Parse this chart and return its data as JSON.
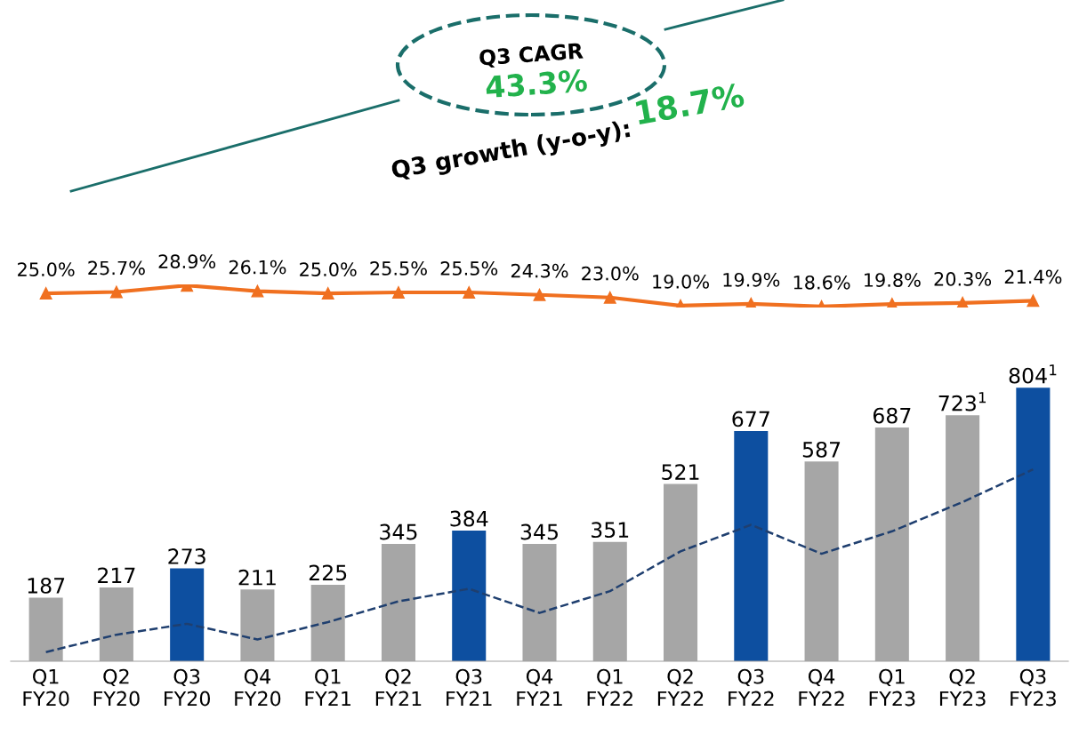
{
  "chart_data": [
    {
      "type": "line",
      "categories": [
        null,
        null,
        null,
        null,
        null,
        null,
        null,
        null,
        null,
        null,
        null,
        null,
        null,
        null,
        null
      ],
      "series": [
        {
          "color": "#f07020",
          "values": [
            25.0,
            25.7,
            28.9,
            26.1,
            25.0,
            25.5,
            25.5,
            24.3,
            23.0,
            19.0,
            19.9,
            18.6,
            19.8,
            20.3,
            21.4
          ],
          "value_labels": [
            "25.0%",
            "25.7%",
            "28.9%",
            "26.1%",
            "25.0%",
            "25.5%",
            "25.5%",
            "24.3%",
            "23.0%",
            "19.0%",
            "19.9%",
            "18.6%",
            "19.8%",
            "20.3%",
            "21.4%"
          ]
        }
      ],
      "marker": "triangle",
      "line_style": "solid",
      "tick_labels": false,
      "grid": false,
      "annotations": [
        "Q3 CAGR",
        "43.3%",
        "Q3 growth (y-o-y):",
        "18.7%"
      ]
    },
    {
      "type": "bar",
      "categories": [
        "Q1\nFY20",
        "Q2\nFY20",
        "Q3\nFY20",
        "Q4\nFY20",
        "Q1\nFY21",
        "Q2\nFY21",
        "Q3\nFY21",
        "Q4\nFY21",
        "Q1\nFY22",
        "Q2\nFY22",
        "Q3\nFY22",
        "Q4\nFY22",
        "Q1\nFY23",
        "Q2\nFY23",
        "Q3\nFY23"
      ],
      "series": [
        {
          "type": "bar",
          "colors": [
            "#a6a6a6",
            "#a6a6a6",
            "#0d4fa0",
            "#a6a6a6",
            "#a6a6a6",
            "#a6a6a6",
            "#0d4fa0",
            "#a6a6a6",
            "#a6a6a6",
            "#a6a6a6",
            "#0d4fa0",
            "#a6a6a6",
            "#a6a6a6",
            "#a6a6a6",
            "#0d4fa0"
          ],
          "values": [
            187,
            217,
            273,
            211,
            225,
            345,
            384,
            345,
            351,
            521,
            677,
            587,
            687,
            723,
            804
          ],
          "value_labels": [
            "187",
            "217",
            "273",
            "211",
            "225",
            "345",
            "384",
            "345",
            "351",
            "521",
            "677",
            "587",
            "687",
            "723$^{1}$",
            "804$^{1}$"
          ]
        },
        {
          "type": "line",
          "color": "#1f3f6f",
          "marker": "none",
          "line_style": "dashed",
          "values": [
            27,
            78,
            110,
            64,
            115,
            176,
            213,
            142,
            206,
            323,
            401,
            316,
            382,
            468,
            564
          ]
        }
      ],
      "tick_labels": "x",
      "grid": false
    }
  ]
}
